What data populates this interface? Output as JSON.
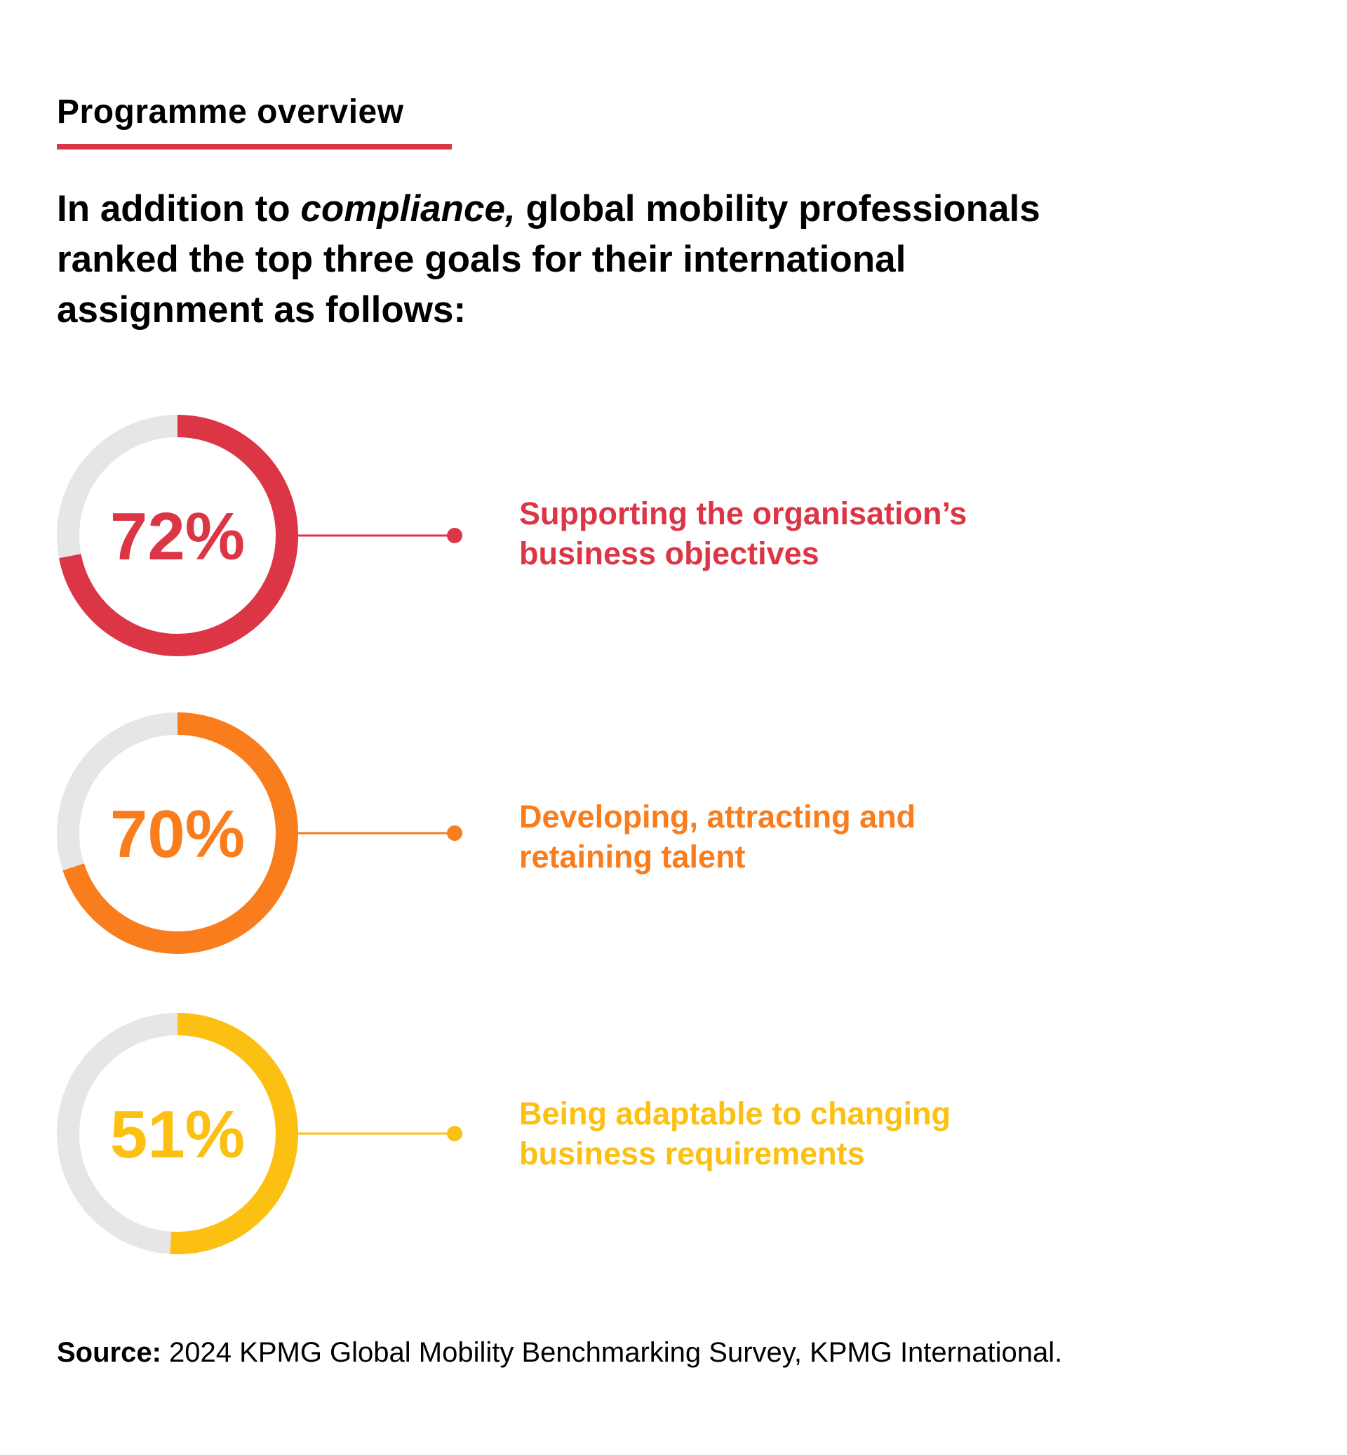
{
  "header": {
    "kicker": "Programme overview",
    "intro_before": "In addition to ",
    "intro_emphasis": "compliance,",
    "intro_after": " global mobility professionals ranked the top three goals for their international assignment as follows:"
  },
  "chart_data": {
    "type": "donut",
    "max": 100,
    "track_color": "#e6e6e6",
    "items": [
      {
        "value": 72,
        "display": "72%",
        "label": "Supporting the organisation’s business objectives",
        "color": "#dc3545"
      },
      {
        "value": 70,
        "display": "70%",
        "label": "Developing, attracting and retaining talent",
        "color": "#f97d1c"
      },
      {
        "value": 51,
        "display": "51%",
        "label": "Being adaptable to changing business requirements",
        "color": "#fbc011"
      }
    ]
  },
  "source": {
    "label": "Source:",
    "text": " 2024 KPMG Global Mobility Benchmarking Survey, KPMG International."
  }
}
